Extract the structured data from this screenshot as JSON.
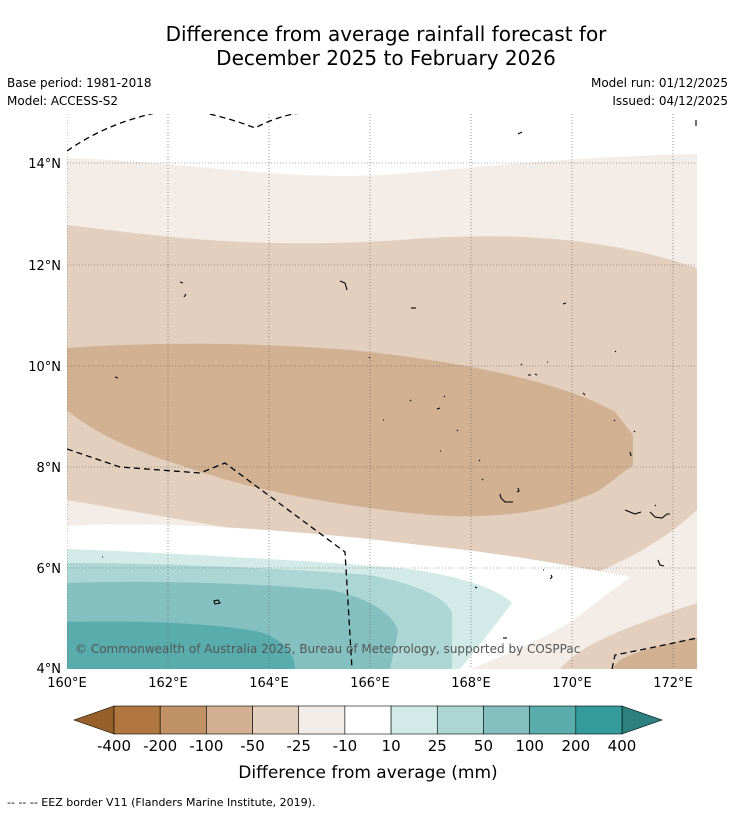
{
  "title": {
    "line1": "Difference from average rainfall forecast for",
    "line2": "December 2025 to February 2026"
  },
  "meta": {
    "base_period": "Base period: 1981-2018",
    "model": "Model: ACCESS-S2",
    "model_run": "Model run: 01/12/2025",
    "issued": "Issued: 04/12/2025"
  },
  "map": {
    "lat_ticks": [
      "14°N",
      "12°N",
      "10°N",
      "8°N",
      "6°N",
      "4°N"
    ],
    "lon_ticks": [
      "160°E",
      "162°E",
      "164°E",
      "166°E",
      "168°E",
      "170°E",
      "172°E"
    ],
    "copyright": "© Commonwealth of Australia 2025, Bureau of Meteorology, supported by COSPPac"
  },
  "colorbar": {
    "title": "Difference from average (mm)",
    "labels": [
      "-400",
      "-200",
      "-100",
      "-50",
      "-25",
      "-10",
      "10",
      "25",
      "50",
      "100",
      "200",
      "400"
    ],
    "colors": [
      "#96602b",
      "#b07840",
      "#c09266",
      "#d2b092",
      "#e3cfbe",
      "#f4ede7",
      "#ffffff",
      "#d3ebe8",
      "#abd6d4",
      "#84c0c0",
      "#58acac",
      "#359a9a",
      "#2c8080"
    ]
  },
  "footnote": "-- -- -- EEZ border V11 (Flanders Marine Institute, 2019)."
}
